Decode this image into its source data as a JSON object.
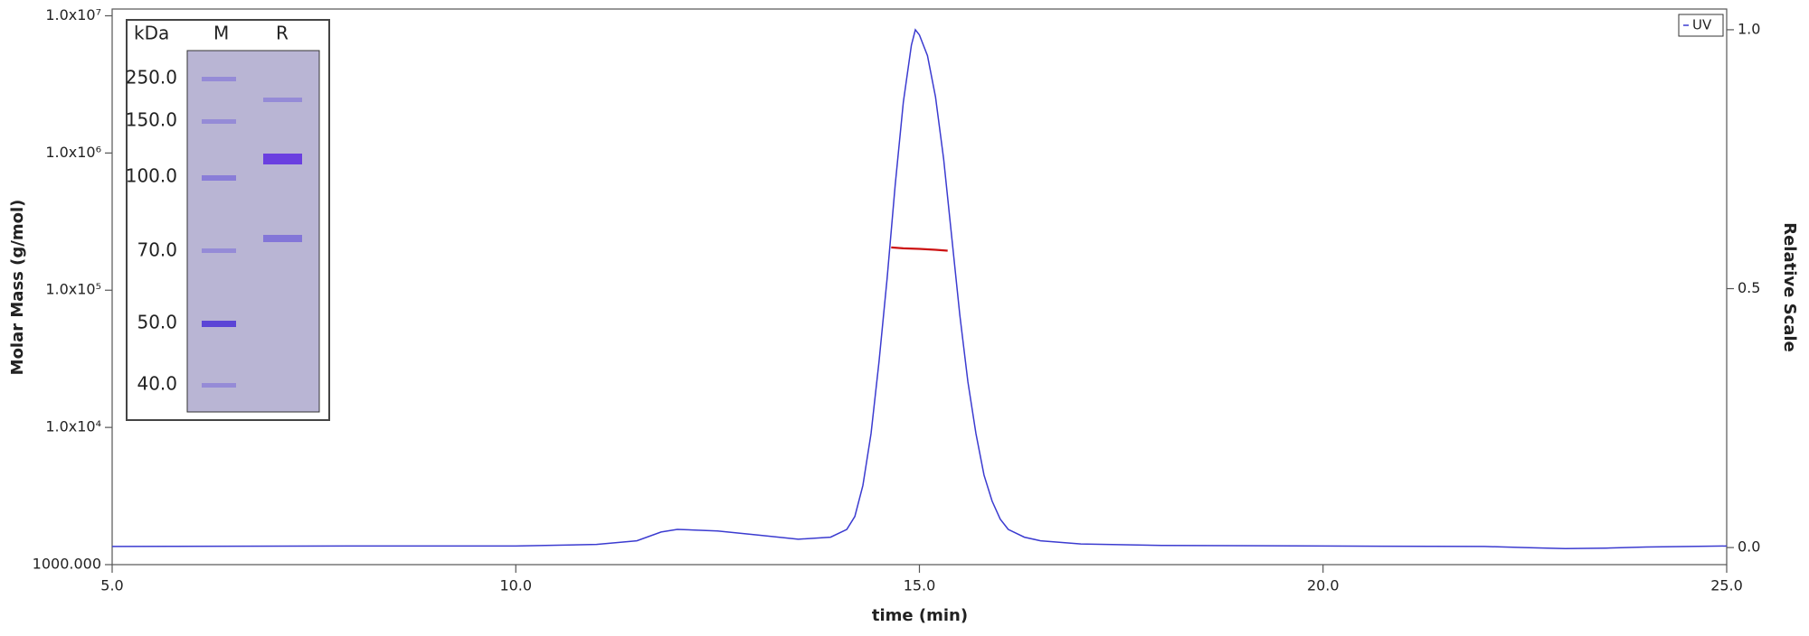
{
  "chart_data": {
    "type": "line",
    "xlabel": "time (min)",
    "ylabel": "Molar Mass (g/mol)",
    "y2label": "Relative Scale",
    "xlim": [
      5,
      25
    ],
    "xticks": [
      {
        "value": 5,
        "label": "5.0"
      },
      {
        "value": 10,
        "label": "10.0"
      },
      {
        "value": 15,
        "label": "15.0"
      },
      {
        "value": 20,
        "label": "20.0"
      },
      {
        "value": 25,
        "label": "25.0"
      }
    ],
    "ylim": [
      1000,
      11200000
    ],
    "yscale": "log",
    "yticks": [
      {
        "value": 1000,
        "label": "1000.000"
      },
      {
        "value": 10000,
        "label": "1.0x10⁴"
      },
      {
        "value": 100000,
        "label": "1.0x10⁵"
      },
      {
        "value": 1000000,
        "label": "1.0x10⁶"
      },
      {
        "value": 10000000,
        "label": "1.0x10⁷"
      }
    ],
    "y2lim": [
      -0.033,
      1.04
    ],
    "y2ticks": [
      {
        "value": 0,
        "label": "0.0"
      },
      {
        "value": 0.5,
        "label": "0.5"
      },
      {
        "value": 1,
        "label": "1.0"
      }
    ],
    "legend": "upper right",
    "series": [
      {
        "name": "UV",
        "color": "#3b3bd0",
        "axis": "y2",
        "x": [
          5,
          8,
          10,
          11,
          11.5,
          11.8,
          12,
          12.5,
          13,
          13.5,
          13.9,
          14.1,
          14.2,
          14.3,
          14.4,
          14.5,
          14.6,
          14.7,
          14.8,
          14.9,
          14.95,
          15,
          15.1,
          15.2,
          15.3,
          15.4,
          15.5,
          15.6,
          15.7,
          15.8,
          15.9,
          16,
          16.1,
          16.3,
          16.5,
          17,
          18,
          20,
          22,
          22.5,
          23,
          23.5,
          24,
          25
        ],
        "values": [
          0.002,
          0.003,
          0.003,
          0.006,
          0.013,
          0.03,
          0.035,
          0.032,
          0.024,
          0.016,
          0.02,
          0.035,
          0.06,
          0.12,
          0.22,
          0.36,
          0.52,
          0.7,
          0.86,
          0.97,
          1.0,
          0.99,
          0.95,
          0.87,
          0.75,
          0.6,
          0.45,
          0.32,
          0.22,
          0.14,
          0.09,
          0.055,
          0.035,
          0.02,
          0.013,
          0.007,
          0.004,
          0.003,
          0.002,
          0.0,
          -0.002,
          -0.001,
          0.001,
          0.003
        ]
      },
      {
        "color": "#cc1111",
        "axis": "y",
        "x": [
          14.65,
          14.8,
          15.0,
          15.2,
          15.35
        ],
        "values": [
          205000,
          202000,
          200000,
          197000,
          194000
        ]
      }
    ]
  },
  "inset": {
    "header": [
      "kDa",
      "M",
      "R"
    ],
    "markers": [
      "250.0",
      "150.0",
      "100.0",
      "70.0",
      "50.0",
      "40.0"
    ]
  }
}
